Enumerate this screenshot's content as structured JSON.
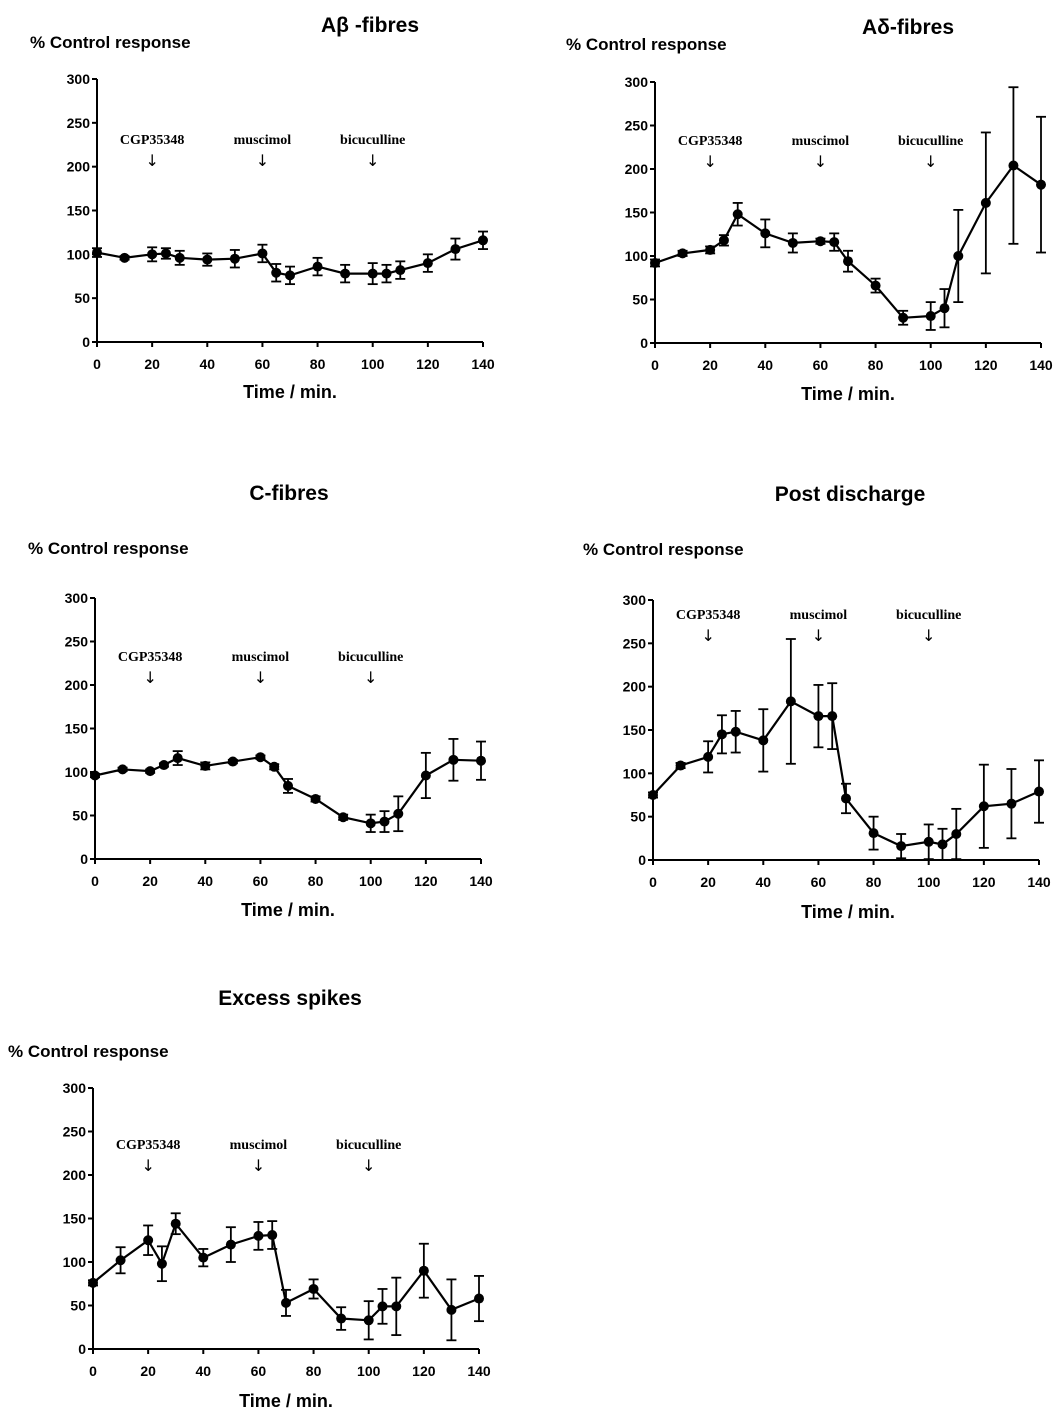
{
  "figure": {
    "x_ticks": [
      "0",
      "20",
      "40",
      "60",
      "80",
      "100",
      "120",
      "140"
    ],
    "y_ticks": [
      "0",
      "50",
      "100",
      "150",
      "200",
      "250",
      "300"
    ],
    "annotations": [
      {
        "label": "CGP35348",
        "x": 20
      },
      {
        "label": "muscimol",
        "x": 60
      },
      {
        "label": "bicuculline",
        "x": 100
      }
    ],
    "arrow_glyph": "↓"
  },
  "chart_data": [
    {
      "type": "line",
      "title": "Aβ -fibres",
      "ylabel": "% Control response",
      "xlabel": "Time / min.",
      "xlim": [
        0,
        140
      ],
      "ylim": [
        0,
        300
      ],
      "x": [
        0,
        10,
        20,
        25,
        30,
        40,
        50,
        60,
        65,
        70,
        80,
        90,
        100,
        105,
        110,
        120,
        130,
        140
      ],
      "values": [
        102,
        96,
        100,
        101,
        96,
        94,
        95,
        101,
        79,
        76,
        86,
        78,
        78,
        78,
        82,
        90,
        106,
        116
      ],
      "errors": [
        5,
        2,
        8,
        6,
        8,
        7,
        10,
        10,
        10,
        10,
        10,
        10,
        12,
        10,
        10,
        10,
        12,
        10
      ]
    },
    {
      "type": "line",
      "title": "Aδ-fibres",
      "ylabel": "% Control response",
      "xlabel": "Time / min.",
      "xlim": [
        0,
        140
      ],
      "ylim": [
        0,
        300
      ],
      "x": [
        0,
        10,
        20,
        25,
        30,
        40,
        50,
        60,
        65,
        70,
        80,
        90,
        100,
        105,
        110,
        120,
        130,
        140
      ],
      "values": [
        92,
        103,
        107,
        118,
        148,
        126,
        115,
        117,
        116,
        94,
        66,
        29,
        31,
        40,
        100,
        161,
        204,
        182
      ],
      "errors": [
        4,
        3,
        4,
        6,
        13,
        16,
        11,
        3,
        10,
        12,
        8,
        8,
        16,
        22,
        53,
        81,
        90,
        78
      ]
    },
    {
      "type": "line",
      "title": "C-fibres",
      "ylabel": "% Control response",
      "xlabel": "Time / min.",
      "xlim": [
        0,
        140
      ],
      "ylim": [
        0,
        300
      ],
      "x": [
        0,
        10,
        20,
        25,
        30,
        40,
        50,
        60,
        65,
        70,
        80,
        90,
        100,
        105,
        110,
        120,
        130,
        140
      ],
      "values": [
        96,
        103,
        101,
        108,
        116,
        107,
        112,
        117,
        106,
        84,
        69,
        48,
        41,
        43,
        52,
        96,
        114,
        113
      ],
      "errors": [
        2,
        2,
        2,
        2,
        8,
        4,
        2,
        2,
        3,
        8,
        3,
        3,
        10,
        12,
        20,
        26,
        24,
        22
      ]
    },
    {
      "type": "line",
      "title": "Post discharge",
      "ylabel": "% Control response",
      "xlabel": "Time / min.",
      "xlim": [
        0,
        140
      ],
      "ylim": [
        0,
        300
      ],
      "x": [
        0,
        10,
        20,
        25,
        30,
        40,
        50,
        60,
        65,
        70,
        80,
        90,
        100,
        105,
        110,
        120,
        130,
        140
      ],
      "values": [
        75,
        109,
        119,
        145,
        148,
        138,
        183,
        166,
        166,
        71,
        31,
        16,
        21,
        18,
        30,
        62,
        65,
        79
      ],
      "errors": [
        3,
        3,
        18,
        22,
        24,
        36,
        72,
        36,
        38,
        17,
        19,
        14,
        20,
        18,
        29,
        48,
        40,
        36
      ]
    },
    {
      "type": "line",
      "title": "Excess spikes",
      "ylabel": "% Control response",
      "xlabel": "Time / min.",
      "xlim": [
        0,
        140
      ],
      "ylim": [
        0,
        300
      ],
      "x": [
        0,
        10,
        20,
        25,
        30,
        40,
        50,
        60,
        65,
        70,
        80,
        90,
        100,
        105,
        110,
        120,
        130,
        140
      ],
      "values": [
        76,
        102,
        125,
        98,
        144,
        105,
        120,
        130,
        131,
        53,
        69,
        35,
        33,
        49,
        49,
        90,
        45,
        58
      ],
      "errors": [
        3,
        15,
        17,
        20,
        12,
        10,
        20,
        16,
        16,
        15,
        11,
        13,
        22,
        20,
        33,
        31,
        35,
        26
      ]
    }
  ]
}
